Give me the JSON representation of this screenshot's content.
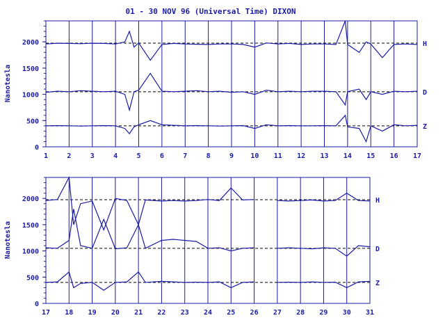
{
  "chart_data": [
    {
      "type": "line",
      "title": "01 - 30 NOV 96 (Universal Time) DIXON",
      "ylabel": "Nanotesla",
      "x_ticks": [
        "1",
        "2",
        "3",
        "4",
        "5",
        "6",
        "7",
        "8",
        "9",
        "10",
        "11",
        "12",
        "13",
        "14",
        "15",
        "16",
        "17"
      ],
      "xlim": [
        1,
        17
      ],
      "ylim": [
        0,
        2400
      ],
      "y_ticks": [
        "0",
        "500",
        "1000",
        "1500",
        "2000"
      ],
      "grid": "vertical day lines, dashed baselines at 2000, 1000 and 400",
      "series": [
        {
          "name": "H",
          "baseline": 1975,
          "x": [
            1,
            1.5,
            2,
            2.5,
            3,
            3.5,
            4,
            4.4,
            4.6,
            4.8,
            5,
            5.5,
            6,
            6.5,
            7,
            7.5,
            8,
            8.5,
            9,
            9.5,
            10,
            10.5,
            11,
            11.5,
            12,
            12.5,
            13,
            13.5,
            13.9,
            14,
            14.5,
            14.8,
            15,
            15.5,
            16,
            16.5,
            17
          ],
          "y": [
            1960,
            1975,
            1970,
            1965,
            1975,
            1970,
            1960,
            2000,
            2200,
            1900,
            1980,
            1650,
            1950,
            1970,
            1960,
            1955,
            1950,
            1960,
            1960,
            1950,
            1900,
            1980,
            1960,
            1970,
            1950,
            1960,
            1960,
            1950,
            2400,
            1950,
            1800,
            2000,
            1960,
            1700,
            1950,
            1960,
            1950
          ]
        },
        {
          "name": "D",
          "baseline": 1050,
          "x": [
            1,
            1.5,
            2,
            2.5,
            3,
            3.5,
            4,
            4.4,
            4.6,
            4.8,
            5,
            5.5,
            6,
            6.5,
            7,
            7.5,
            8,
            8.5,
            9,
            9.5,
            10,
            10.5,
            11,
            11.5,
            12,
            12.5,
            13,
            13.5,
            13.9,
            14,
            14.5,
            14.8,
            15,
            15.5,
            16,
            16.5,
            17
          ],
          "y": [
            1040,
            1060,
            1050,
            1070,
            1060,
            1050,
            1060,
            1000,
            700,
            1050,
            1080,
            1400,
            1060,
            1050,
            1060,
            1070,
            1050,
            1060,
            1040,
            1050,
            1000,
            1080,
            1050,
            1060,
            1050,
            1060,
            1060,
            1050,
            800,
            1050,
            1100,
            900,
            1050,
            1000,
            1060,
            1050,
            1060
          ]
        },
        {
          "name": "Z",
          "baseline": 400,
          "x": [
            1,
            1.5,
            2,
            2.5,
            3,
            3.5,
            4,
            4.4,
            4.6,
            4.8,
            5,
            5.5,
            6,
            6.5,
            7,
            7.5,
            8,
            8.5,
            9,
            9.5,
            10,
            10.5,
            11,
            11.5,
            12,
            12.5,
            13,
            13.5,
            13.9,
            14,
            14.5,
            14.8,
            15,
            15.5,
            16,
            16.5,
            17
          ],
          "y": [
            400,
            405,
            400,
            395,
            400,
            405,
            400,
            350,
            250,
            380,
            420,
            500,
            420,
            410,
            400,
            405,
            400,
            395,
            400,
            405,
            350,
            420,
            400,
            405,
            400,
            400,
            405,
            400,
            600,
            380,
            350,
            100,
            400,
            300,
            420,
            400,
            410
          ]
        }
      ]
    },
    {
      "type": "line",
      "ylabel": "Nanotesla",
      "x_ticks": [
        "17",
        "18",
        "19",
        "20",
        "21",
        "22",
        "23",
        "24",
        "25",
        "26",
        "27",
        "28",
        "29",
        "30",
        "31"
      ],
      "xlim": [
        17,
        31
      ],
      "ylim": [
        0,
        2400
      ],
      "y_ticks": [
        "0",
        "500",
        "1000",
        "1500",
        "2000"
      ],
      "grid": "vertical day lines, dashed baselines at 2000, 1000 and 400",
      "series": [
        {
          "name": "H",
          "baseline": 1975,
          "x": [
            17,
            17.5,
            18,
            18.2,
            18.5,
            19,
            19.5,
            20,
            20.5,
            21,
            21.3,
            22,
            22.5,
            23,
            23.5,
            24,
            24.5,
            25,
            25.5,
            26,
            26.5,
            27,
            27.5,
            28,
            28.5,
            29,
            29.5,
            30,
            30.5,
            31
          ],
          "y": [
            1960,
            1980,
            2400,
            1500,
            1900,
            1950,
            1400,
            2000,
            1960,
            1500,
            1970,
            1950,
            1960,
            1950,
            1960,
            1980,
            1960,
            2200,
            1970,
            1980,
            null,
            1960,
            1950,
            1960,
            1970,
            1950,
            1960,
            2100,
            1960,
            1950
          ]
        },
        {
          "name": "D",
          "baseline": 1050,
          "x": [
            17,
            17.5,
            18,
            18.2,
            18.5,
            19,
            19.5,
            20,
            20.5,
            21,
            21.3,
            22,
            22.5,
            23,
            23.5,
            24,
            24.5,
            25,
            25.5,
            26,
            26.5,
            27,
            27.5,
            28,
            28.5,
            29,
            29.5,
            30,
            30.5,
            31
          ],
          "y": [
            1060,
            1050,
            1200,
            1800,
            1100,
            1050,
            1600,
            1040,
            1060,
            1500,
            1050,
            1200,
            1220,
            1200,
            1180,
            1050,
            1060,
            1000,
            1050,
            1060,
            null,
            1050,
            1060,
            1050,
            1040,
            1060,
            1050,
            900,
            1100,
            1080
          ]
        },
        {
          "name": "Z",
          "baseline": 400,
          "x": [
            17,
            17.5,
            18,
            18.2,
            18.5,
            19,
            19.5,
            20,
            20.5,
            21,
            21.3,
            22,
            22.5,
            23,
            23.5,
            24,
            24.5,
            25,
            25.5,
            26,
            26.5,
            27,
            27.5,
            28,
            28.5,
            29,
            29.5,
            30,
            30.5,
            31
          ],
          "y": [
            400,
            410,
            600,
            300,
            380,
            400,
            250,
            400,
            410,
            600,
            400,
            420,
            410,
            400,
            405,
            400,
            410,
            300,
            400,
            410,
            null,
            400,
            405,
            400,
            410,
            400,
            405,
            300,
            410,
            420
          ]
        }
      ]
    }
  ],
  "colors": {
    "line": "#1a1aa6",
    "background": "#ffffff"
  }
}
